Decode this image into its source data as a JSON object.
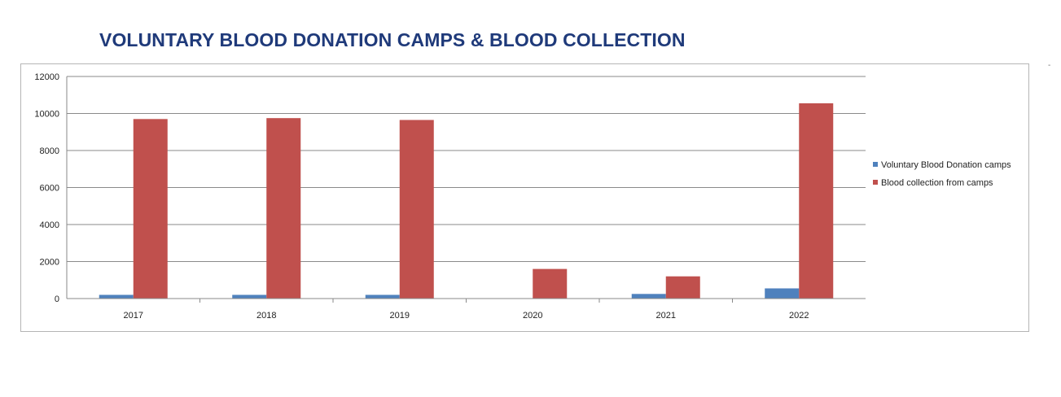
{
  "page": {
    "title": "VOLUNTARY BLOOD DONATION CAMPS & BLOOD COLLECTION"
  },
  "colors": {
    "title": "#1f3a7a",
    "series_camps": "#4f81bd",
    "series_collection": "#c0504d",
    "grid": "#8a8a8a"
  },
  "chart_data": {
    "type": "bar",
    "title": "",
    "xlabel": "",
    "ylabel": "",
    "categories": [
      "2017",
      "2018",
      "2019",
      "2020",
      "2021",
      "2022"
    ],
    "series": [
      {
        "name": "Voluntary Blood Donation camps",
        "color": "#4f81bd",
        "values": [
          200,
          200,
          200,
          0,
          250,
          550
        ]
      },
      {
        "name": "Blood collection from camps",
        "color": "#c0504d",
        "values": [
          9700,
          9750,
          9650,
          1600,
          1200,
          10550
        ]
      }
    ],
    "ylim": [
      0,
      12000
    ],
    "yticks": [
      "0",
      "2000",
      "4000",
      "6000",
      "8000",
      "10000",
      "12000"
    ],
    "grid": true,
    "legend_position": "right"
  }
}
